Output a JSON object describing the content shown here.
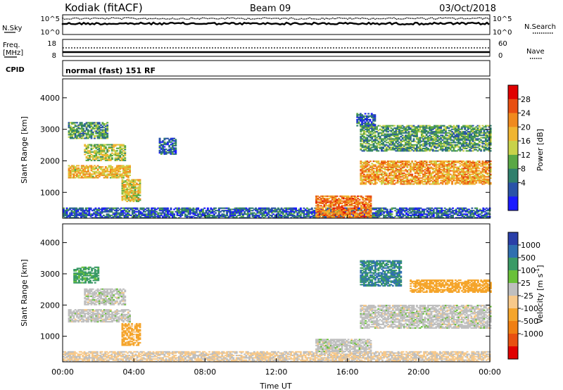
{
  "header": {
    "station": "Kodiak (fitACF)",
    "beam": "Beam 09",
    "date": "03/Oct/2018"
  },
  "panels": {
    "nsky_label": "N.Sky",
    "nsky_ticks": [
      "10^5",
      "10^0"
    ],
    "nsearch_label": "N.Search",
    "nsearch_ticks": [
      "10^5",
      "10^0"
    ],
    "freq_label": "Freq.",
    "freq_unit": "[MHz]",
    "freq_ticks": [
      "18",
      "8"
    ],
    "nave_label": "Nave",
    "nave_ticks": [
      "60",
      "0"
    ],
    "cpid_label": "CPID",
    "cpid_text": "normal (fast) 151 RF"
  },
  "colors": {
    "power": [
      "#1a1aff",
      "#2a53a8",
      "#2f7f6c",
      "#5aa845",
      "#c8d24a",
      "#f0b531",
      "#f08a1e",
      "#e84f12",
      "#e00000"
    ],
    "velocity": [
      "#2a3fa8",
      "#2f6fb0",
      "#3a9a66",
      "#6ac13a",
      "#bfbfbf",
      "#f7c98a",
      "#f5a52b",
      "#f07f12",
      "#e85010",
      "#e00000"
    ]
  },
  "chart_data": [
    {
      "type": "heatmap",
      "name": "Power",
      "ylabel": "Slant Range [km]",
      "ylim": [
        180,
        4600
      ],
      "y_ticks": [
        "1000",
        "2000",
        "3000",
        "4000"
      ],
      "x_ticks": [
        "00:00",
        "04:00",
        "08:00",
        "12:00",
        "16:00",
        "20:00",
        "00:00"
      ],
      "colorbar": {
        "label": "Power [dB]",
        "ticks": [
          "28",
          "24",
          "20",
          "16",
          "12",
          "8",
          "4"
        ]
      },
      "regions": [
        {
          "t0": 0.3,
          "t1": 3.8,
          "r0": 1450,
          "r1": 1850,
          "v": 20
        },
        {
          "t0": 1.2,
          "t1": 3.5,
          "r0": 2000,
          "r1": 2500,
          "v": 16
        },
        {
          "t0": 0.3,
          "t1": 2.5,
          "r0": 2700,
          "r1": 3200,
          "v": 12
        },
        {
          "t0": 3.3,
          "t1": 4.3,
          "r0": 700,
          "r1": 1400,
          "v": 18
        },
        {
          "t0": 0.0,
          "t1": 24.0,
          "r0": 180,
          "r1": 500,
          "v": 8
        },
        {
          "t0": 14.2,
          "t1": 17.3,
          "r0": 180,
          "r1": 900,
          "v": 24
        },
        {
          "t0": 16.7,
          "t1": 24.0,
          "r0": 1250,
          "r1": 2000,
          "v": 22
        },
        {
          "t0": 16.7,
          "t1": 24.0,
          "r0": 2300,
          "r1": 3100,
          "v": 12
        },
        {
          "t0": 16.5,
          "t1": 17.5,
          "r0": 3100,
          "r1": 3500,
          "v": 8
        },
        {
          "t0": 5.4,
          "t1": 6.3,
          "r0": 2200,
          "r1": 2700,
          "v": 8
        }
      ]
    },
    {
      "type": "heatmap",
      "name": "Velocity",
      "ylabel": "Slant Range [km]",
      "xlabel": "Time UT",
      "ylim": [
        180,
        4600
      ],
      "y_ticks": [
        "1000",
        "2000",
        "3000",
        "4000"
      ],
      "x_ticks": [
        "00:00",
        "04:00",
        "08:00",
        "12:00",
        "16:00",
        "20:00",
        "00:00"
      ],
      "colorbar": {
        "label": "Velocity [m s^-1]",
        "ticks": [
          "1000",
          "500",
          "100",
          "25",
          "-25",
          "-100",
          "-500",
          "-1000"
        ]
      },
      "regions": [
        {
          "t0": 0.3,
          "t1": 3.8,
          "r0": 1450,
          "r1": 1850,
          "v": 0
        },
        {
          "t0": 1.2,
          "t1": 3.5,
          "r0": 2000,
          "r1": 2500,
          "v": 0
        },
        {
          "t0": 0.6,
          "t1": 2.0,
          "r0": 2700,
          "r1": 3200,
          "v": 150
        },
        {
          "t0": 3.3,
          "t1": 4.3,
          "r0": 700,
          "r1": 1400,
          "v": -150
        },
        {
          "t0": 0.0,
          "t1": 24.0,
          "r0": 180,
          "r1": 500,
          "v": -30
        },
        {
          "t0": 14.2,
          "t1": 17.3,
          "r0": 500,
          "r1": 900,
          "v": 0
        },
        {
          "t0": 16.7,
          "t1": 24.0,
          "r0": 1250,
          "r1": 2000,
          "v": 0
        },
        {
          "t0": 19.5,
          "t1": 24.0,
          "r0": 2400,
          "r1": 2800,
          "v": -200
        },
        {
          "t0": 16.7,
          "t1": 19.0,
          "r0": 2600,
          "r1": 3400,
          "v": 300
        }
      ]
    }
  ]
}
